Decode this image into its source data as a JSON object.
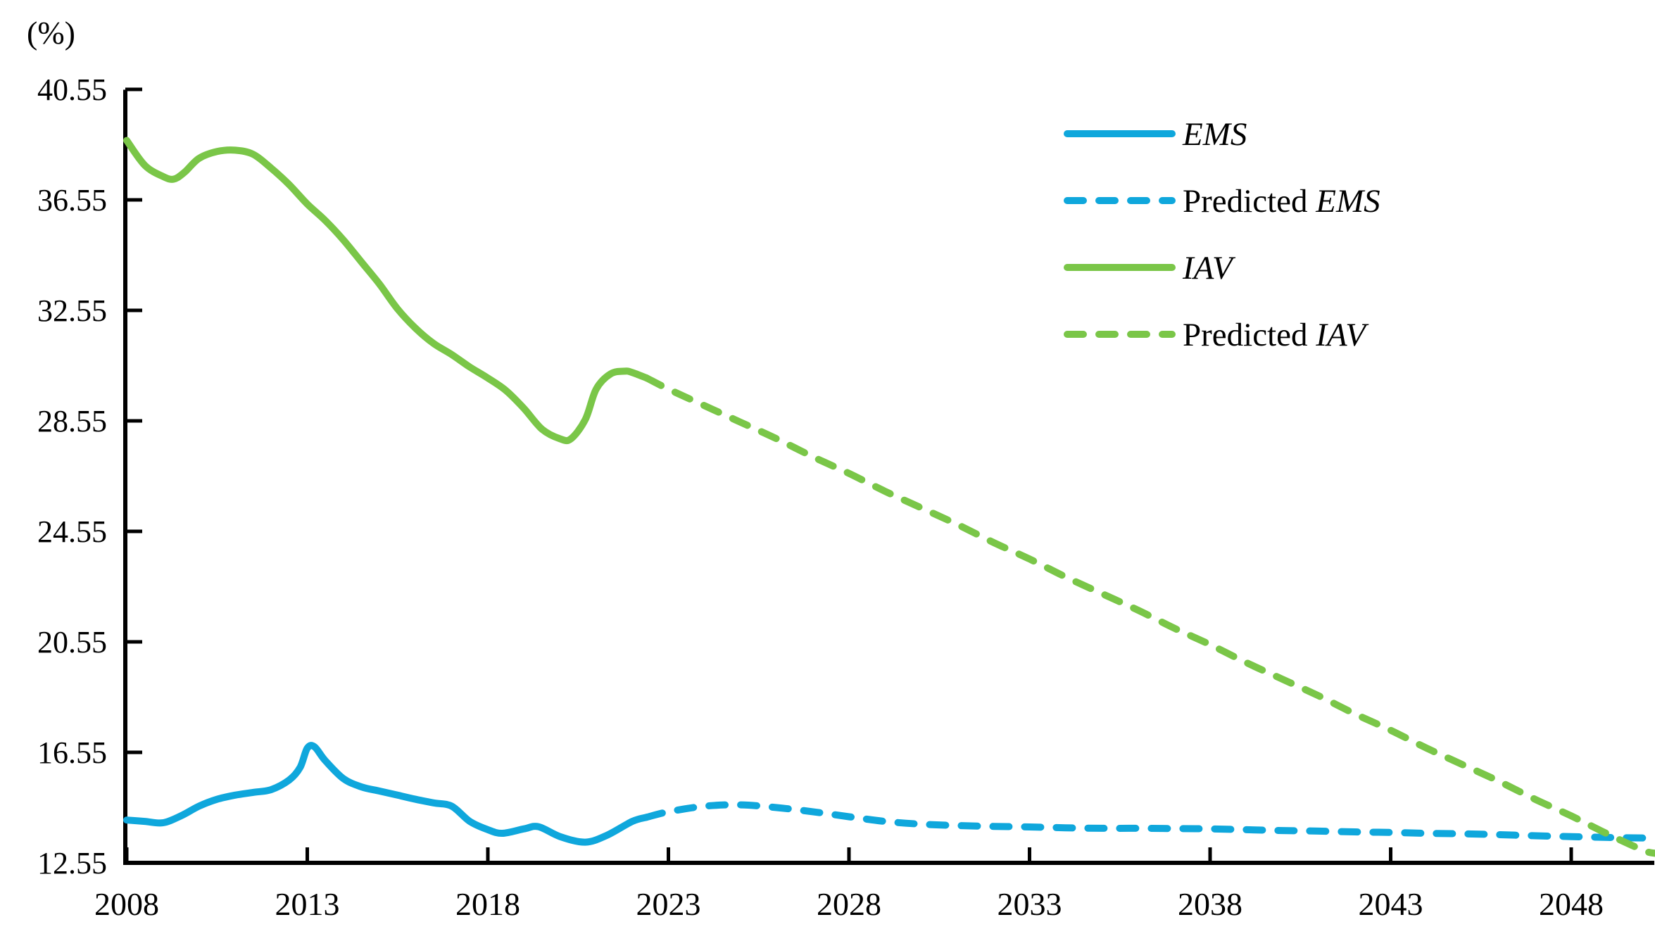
{
  "figure": {
    "unit_label": "(%)",
    "background": "#ffffff",
    "axis_color": "#000000"
  },
  "legend": {
    "items": [
      {
        "prefix": "",
        "name": "EMS",
        "color": "#0FA7DC",
        "dashed": false
      },
      {
        "prefix": "Predicted ",
        "name": "EMS",
        "color": "#0FA7DC",
        "dashed": true
      },
      {
        "prefix": "",
        "name": "IAV",
        "color": "#7AC648",
        "dashed": false
      },
      {
        "prefix": "Predicted ",
        "name": "IAV",
        "color": "#7AC648",
        "dashed": true
      }
    ]
  },
  "chart_data": {
    "type": "line",
    "title": "",
    "xlabel": "",
    "ylabel": "(%)",
    "ylim": [
      12.55,
      40.55
    ],
    "xlim": [
      2008,
      2050.5
    ],
    "grid": false,
    "legend_position": "upper right",
    "y_tick_labels": [
      "40.55",
      "36.55",
      "32.55",
      "28.55",
      "24.55",
      "20.55",
      "16.55",
      "12.55"
    ],
    "y_tick_values": [
      40.55,
      36.55,
      32.55,
      28.55,
      24.55,
      20.55,
      16.55,
      12.55
    ],
    "x_tick_labels": [
      "2008",
      "2013",
      "2018",
      "2023",
      "2028",
      "2033",
      "2038",
      "2043",
      "2048"
    ],
    "x_tick_values": [
      2008,
      2013,
      2018,
      2023,
      2028,
      2033,
      2038,
      2043,
      2048
    ],
    "series": [
      {
        "name": "EMS",
        "style": "solid",
        "color": "#0FA7DC",
        "points": [
          [
            2008,
            14.1
          ],
          [
            2008.5,
            14.05
          ],
          [
            2009,
            14.0
          ],
          [
            2009.5,
            14.25
          ],
          [
            2010,
            14.6
          ],
          [
            2010.5,
            14.85
          ],
          [
            2011,
            15.0
          ],
          [
            2011.5,
            15.1
          ],
          [
            2012,
            15.2
          ],
          [
            2012.5,
            15.55
          ],
          [
            2012.8,
            16.0
          ],
          [
            2013,
            16.7
          ],
          [
            2013.2,
            16.75
          ],
          [
            2013.5,
            16.25
          ],
          [
            2014,
            15.6
          ],
          [
            2014.5,
            15.3
          ],
          [
            2015,
            15.15
          ],
          [
            2015.5,
            15.0
          ],
          [
            2016,
            14.85
          ],
          [
            2016.5,
            14.72
          ],
          [
            2017,
            14.6
          ],
          [
            2017.5,
            14.05
          ],
          [
            2018,
            13.75
          ],
          [
            2018.4,
            13.62
          ],
          [
            2019,
            13.78
          ],
          [
            2019.4,
            13.86
          ],
          [
            2020,
            13.5
          ],
          [
            2020.7,
            13.3
          ],
          [
            2021.3,
            13.55
          ],
          [
            2022,
            14.05
          ],
          [
            2022.4,
            14.2
          ]
        ]
      },
      {
        "name": "Predicted EMS",
        "style": "dashed",
        "color": "#0FA7DC",
        "points": [
          [
            2022.4,
            14.2
          ],
          [
            2023,
            14.4
          ],
          [
            2024,
            14.6
          ],
          [
            2025,
            14.65
          ],
          [
            2026,
            14.55
          ],
          [
            2027,
            14.4
          ],
          [
            2028,
            14.22
          ],
          [
            2029,
            14.05
          ],
          [
            2030,
            13.95
          ],
          [
            2031,
            13.9
          ],
          [
            2032,
            13.87
          ],
          [
            2033,
            13.85
          ],
          [
            2034,
            13.82
          ],
          [
            2035,
            13.8
          ],
          [
            2036,
            13.8
          ],
          [
            2037,
            13.79
          ],
          [
            2038,
            13.78
          ],
          [
            2039,
            13.75
          ],
          [
            2040,
            13.72
          ],
          [
            2041,
            13.7
          ],
          [
            2042,
            13.67
          ],
          [
            2043,
            13.65
          ],
          [
            2044,
            13.62
          ],
          [
            2045,
            13.6
          ],
          [
            2046,
            13.57
          ],
          [
            2047,
            13.53
          ],
          [
            2048,
            13.5
          ],
          [
            2049,
            13.47
          ],
          [
            2050,
            13.45
          ],
          [
            2050.4,
            13.44
          ]
        ]
      },
      {
        "name": "IAV",
        "style": "solid",
        "color": "#7AC648",
        "points": [
          [
            2008,
            38.7
          ],
          [
            2008.5,
            37.8
          ],
          [
            2009,
            37.4
          ],
          [
            2009.3,
            37.3
          ],
          [
            2009.6,
            37.55
          ],
          [
            2010,
            38.05
          ],
          [
            2010.5,
            38.3
          ],
          [
            2011,
            38.35
          ],
          [
            2011.5,
            38.2
          ],
          [
            2012,
            37.7
          ],
          [
            2012.5,
            37.1
          ],
          [
            2013,
            36.4
          ],
          [
            2013.5,
            35.8
          ],
          [
            2014,
            35.1
          ],
          [
            2014.5,
            34.3
          ],
          [
            2015,
            33.5
          ],
          [
            2015.5,
            32.6
          ],
          [
            2016,
            31.9
          ],
          [
            2016.5,
            31.35
          ],
          [
            2017,
            30.95
          ],
          [
            2017.5,
            30.5
          ],
          [
            2018,
            30.1
          ],
          [
            2018.5,
            29.65
          ],
          [
            2019,
            29.0
          ],
          [
            2019.5,
            28.25
          ],
          [
            2020,
            27.9
          ],
          [
            2020.3,
            27.9
          ],
          [
            2020.7,
            28.6
          ],
          [
            2021,
            29.7
          ],
          [
            2021.4,
            30.25
          ],
          [
            2021.8,
            30.35
          ],
          [
            2022,
            30.3
          ],
          [
            2022.4,
            30.1
          ]
        ]
      },
      {
        "name": "Predicted IAV",
        "style": "dashed",
        "color": "#7AC648",
        "points": [
          [
            2022.4,
            30.1
          ],
          [
            2023,
            29.7
          ],
          [
            2024,
            29.1
          ],
          [
            2025,
            28.5
          ],
          [
            2026,
            27.9
          ],
          [
            2027,
            27.25
          ],
          [
            2028,
            26.65
          ],
          [
            2029,
            26.0
          ],
          [
            2030,
            25.4
          ],
          [
            2031,
            24.8
          ],
          [
            2032,
            24.15
          ],
          [
            2033,
            23.55
          ],
          [
            2034,
            22.9
          ],
          [
            2035,
            22.3
          ],
          [
            2036,
            21.7
          ],
          [
            2037,
            21.05
          ],
          [
            2038,
            20.45
          ],
          [
            2039,
            19.8
          ],
          [
            2040,
            19.2
          ],
          [
            2041,
            18.6
          ],
          [
            2042,
            17.95
          ],
          [
            2043,
            17.35
          ],
          [
            2044,
            16.7
          ],
          [
            2045,
            16.1
          ],
          [
            2046,
            15.5
          ],
          [
            2047,
            14.85
          ],
          [
            2048,
            14.25
          ],
          [
            2049,
            13.6
          ],
          [
            2050,
            13.0
          ],
          [
            2050.3,
            12.9
          ]
        ]
      }
    ]
  }
}
